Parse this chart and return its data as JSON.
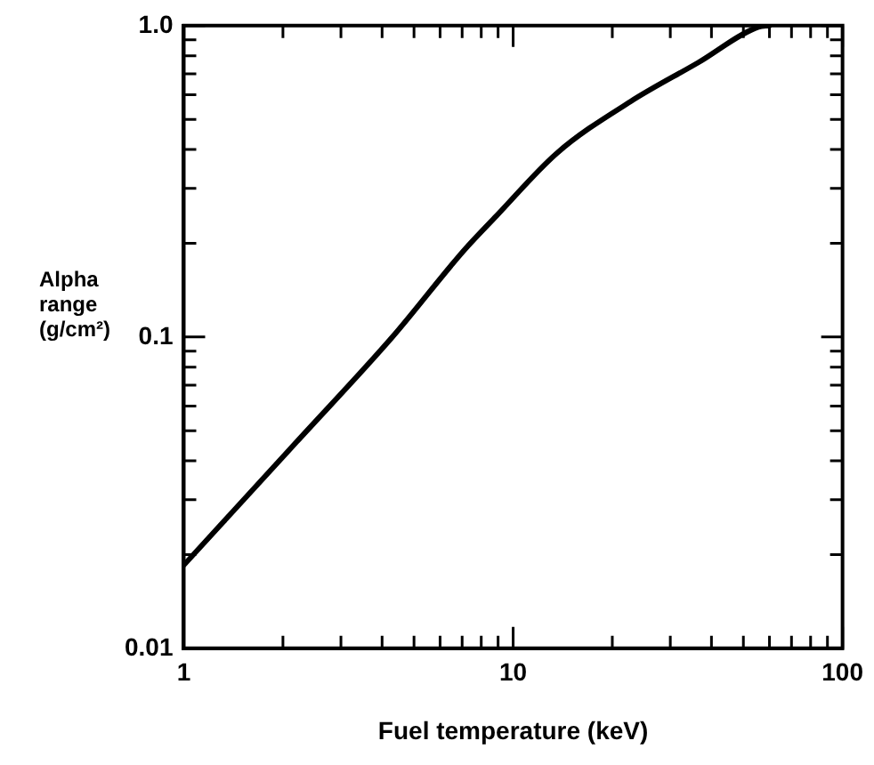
{
  "chart_data": {
    "type": "line",
    "xlabel": "Fuel temperature (keV)",
    "ylabel": "Alpha range (g/cm²)",
    "log": "xy",
    "grid": false,
    "legend": false,
    "marker": "none",
    "line_style": "solid",
    "xlim": [
      1,
      100
    ],
    "ylim": [
      0.01,
      1
    ],
    "xticks": [
      1,
      {
        "value": 2,
        "label": null
      },
      {
        "value": 3,
        "label": null
      },
      {
        "value": 4,
        "label": null
      },
      {
        "value": 5,
        "label": null
      },
      {
        "value": 6,
        "label": null
      },
      {
        "value": 7,
        "label": null
      },
      {
        "value": 8,
        "label": null
      },
      {
        "value": 9,
        "label": null
      },
      10,
      {
        "value": 20,
        "label": null
      },
      {
        "value": 30,
        "label": null
      },
      {
        "value": 40,
        "label": null
      },
      {
        "value": 50,
        "label": null
      },
      {
        "value": 60,
        "label": null
      },
      {
        "value": 70,
        "label": null
      },
      {
        "value": 80,
        "label": null
      },
      {
        "value": 90,
        "label": null
      },
      100
    ],
    "yticks": [
      0.01,
      {
        "value": 0.02,
        "label": null
      },
      {
        "value": 0.03,
        "label": null
      },
      {
        "value": 0.04,
        "label": null
      },
      {
        "value": 0.05,
        "label": null
      },
      {
        "value": 0.06,
        "label": null
      },
      {
        "value": 0.07,
        "label": null
      },
      {
        "value": 0.08,
        "label": null
      },
      {
        "value": 0.09,
        "label": null
      },
      0.1,
      {
        "value": 0.2,
        "label": null
      },
      {
        "value": 0.3,
        "label": null
      },
      {
        "value": 0.4,
        "label": null
      },
      {
        "value": 0.5,
        "label": null
      },
      {
        "value": 0.6,
        "label": null
      },
      {
        "value": 0.7,
        "label": null
      },
      {
        "value": 0.8,
        "label": null
      },
      {
        "value": 0.9,
        "label": null
      },
      {
        "value": 1,
        "label": "1.0"
      }
    ],
    "series": [
      {
        "color": "#000000",
        "x": [
          1,
          2.2,
          4.3,
          7.1,
          8.9,
          13.6,
          22.7,
          36.4,
          55.5,
          60
        ],
        "values": [
          0.0185,
          0.046,
          0.1,
          0.19,
          0.245,
          0.39,
          0.57,
          0.76,
          0.99,
          1
        ]
      }
    ]
  }
}
